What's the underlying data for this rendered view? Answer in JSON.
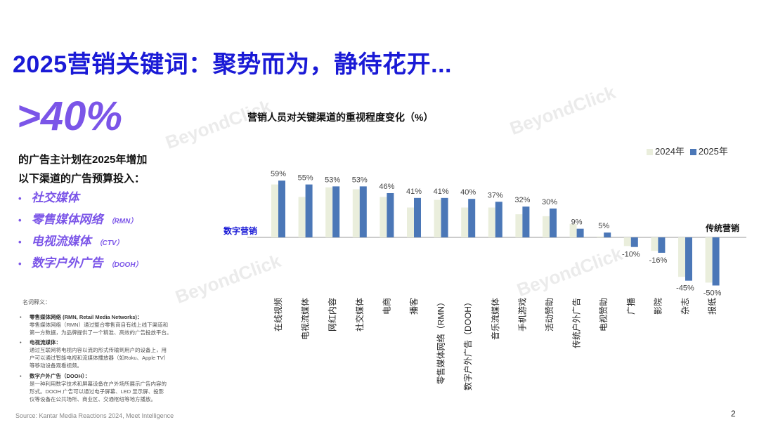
{
  "page": {
    "title": "2025营销关键词：聚势而为，静待花开...",
    "big_stat": ">40%",
    "intro_line1": "的广告主计划在2025年增加",
    "intro_line2": "以下渠道的广告预算投入：",
    "channels": [
      {
        "label": "社交媒体",
        "abbr": ""
      },
      {
        "label": "零售媒体网络",
        "abbr": "（RMN）"
      },
      {
        "label": "电视流媒体",
        "abbr": "（CTV）"
      },
      {
        "label": "数字户外广告",
        "abbr": "（DOOH）"
      }
    ],
    "glossary_title": "名词释义：",
    "glossary": [
      {
        "head": "零售媒体网络 (RMN, Retail Media Networks)：",
        "lines": [
          "零售媒体网络（RMN）通过整合零售商自有线上线下渠道和",
          "第一方数据，为品牌提供了一个精准、高效的广告投放平台。"
        ]
      },
      {
        "head": "电视流媒体：",
        "lines": [
          "通过互联网将电视内容以流的形式传输到用户的设备上，用",
          "户可以通过智能电视和流媒体播放器（如Roku、Apple TV）",
          "等移动设备观看视频。"
        ]
      },
      {
        "head": "数字户外广告（DOOH）：",
        "lines": [
          "是一种利用数字技术和屏幕设备在户外场所展示广告内容的",
          "形式。DOOH 广告可以通过电子屏幕、LED 显示屏、投影",
          "仪等设备在公共场所、商业区、交通枢纽等地方播放。"
        ]
      }
    ],
    "source": "Source: Kantar Media Reactions 2024, Meet Intelligence",
    "page_number": "2",
    "watermark_text": "BeyondClick"
  },
  "chart_data": {
    "type": "bar",
    "title": "营销人员对关键渠道的重视程度变化（%）",
    "categories": [
      "在线视频",
      "电视流媒体",
      "网红内容",
      "社交媒体",
      "电商",
      "播客",
      "零售媒体网络（RMN）",
      "数字户外广告（DOOH）",
      "音乐流媒体",
      "手机游戏",
      "活动赞助",
      "传统户外广告",
      "电视赞助",
      "广播",
      "影院",
      "杂志",
      "报纸"
    ],
    "series": [
      {
        "name": "2024年",
        "color": "#eaeedc",
        "values": [
          55,
          42,
          52,
          50,
          42,
          31,
          39,
          31,
          31,
          24,
          22,
          14,
          1,
          -9,
          -14,
          -41,
          -47
        ]
      },
      {
        "name": "2025年",
        "color": "#4b77b7",
        "values": [
          59,
          55,
          53,
          53,
          46,
          41,
          41,
          40,
          37,
          32,
          30,
          9,
          5,
          -10,
          -16,
          -45,
          -50
        ]
      }
    ],
    "data_labels": [
      "59%",
      "55%",
      "53%",
      "53%",
      "46%",
      "41%",
      "41%",
      "40%",
      "37%",
      "32%",
      "30%",
      "9%",
      "5%",
      "-10%",
      "-16%",
      "-45%",
      "-50%"
    ],
    "group_labels": {
      "left": "数字营销",
      "right": "传统营销"
    },
    "legend_position": "top-right",
    "ylim": [
      -50,
      59
    ],
    "grid": false
  }
}
